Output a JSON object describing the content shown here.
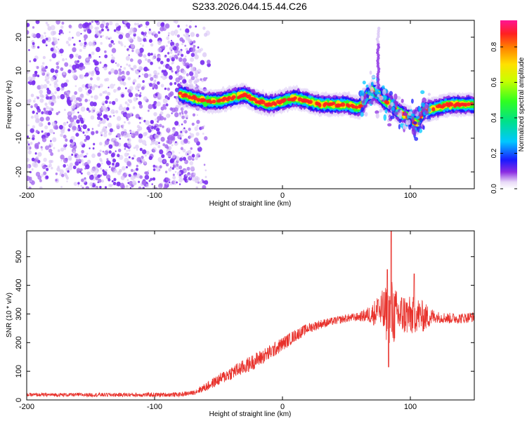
{
  "title": "S233.2026.044.15.44.C26",
  "chart_data": [
    {
      "type": "heatmap",
      "xlabel": "Height of straight line (km)",
      "ylabel": "Frequency (Hz)",
      "xlim": [
        -200,
        150
      ],
      "ylim": [
        -25,
        25
      ],
      "x_ticks": [
        -200,
        -100,
        0,
        100
      ],
      "y_ticks": [
        -20,
        -10,
        0,
        10,
        20
      ],
      "colorbar": {
        "label": "Normalized spectral amplitude",
        "range": [
          0,
          0.95
        ],
        "ticks": [
          0.0,
          0.2,
          0.4,
          0.6,
          0.8
        ],
        "tick_labels": [
          "0.0",
          "0.2",
          "0.4",
          "0.6",
          "0.8"
        ]
      },
      "ridge": {
        "x": [
          -80,
          -70,
          -60,
          -50,
          -40,
          -30,
          -20,
          -10,
          0,
          10,
          20,
          30,
          40,
          50,
          60,
          65,
          70,
          75,
          80,
          85,
          90,
          95,
          100,
          105,
          110,
          120,
          130,
          140,
          150
        ],
        "y": [
          3,
          2,
          1,
          1,
          2,
          3,
          1,
          0,
          1,
          2,
          1,
          0,
          0,
          0,
          -1,
          2,
          4,
          3,
          1,
          0,
          -2,
          -3,
          -4,
          -6,
          -2,
          -1,
          0,
          0,
          0
        ]
      },
      "noise_region": [
        -200,
        -65
      ],
      "spike": {
        "x": 75,
        "y_range": [
          5,
          23
        ]
      }
    },
    {
      "type": "line",
      "xlabel": "Height of straight line (km)",
      "ylabel": "SNR (10 * v/v)",
      "xlim": [
        -200,
        150
      ],
      "ylim": [
        0,
        590
      ],
      "x_ticks": [
        -200,
        -100,
        0,
        100
      ],
      "y_ticks": [
        0,
        100,
        200,
        300,
        400,
        500
      ],
      "series": [
        {
          "color": "#e8302a",
          "trend_x": [
            -200,
            -150,
            -100,
            -80,
            -70,
            -60,
            -50,
            -40,
            -30,
            -20,
            -10,
            0,
            10,
            20,
            30,
            40,
            50,
            60,
            70,
            75,
            80,
            85,
            90,
            95,
            100,
            105,
            110,
            120,
            130,
            140,
            150
          ],
          "trend_y": [
            18,
            18,
            18,
            19,
            25,
            45,
            70,
            95,
            115,
            140,
            165,
            195,
            225,
            250,
            265,
            275,
            285,
            290,
            300,
            310,
            300,
            300,
            295,
            300,
            290,
            300,
            290,
            290,
            285,
            285,
            290
          ],
          "noise_amp_x": [
            -200,
            -70,
            -60,
            -40,
            -20,
            0,
            20,
            40,
            60,
            70,
            80,
            85,
            90,
            100,
            110,
            120,
            150
          ],
          "noise_amp_y": [
            6,
            8,
            15,
            25,
            28,
            25,
            18,
            14,
            15,
            35,
            90,
            130,
            80,
            70,
            55,
            20,
            18
          ],
          "peaks": [
            [
              75,
              350
            ],
            [
              82,
              455
            ],
            [
              85,
              590
            ],
            [
              103,
              440
            ],
            [
              83,
              115
            ]
          ]
        }
      ]
    }
  ]
}
